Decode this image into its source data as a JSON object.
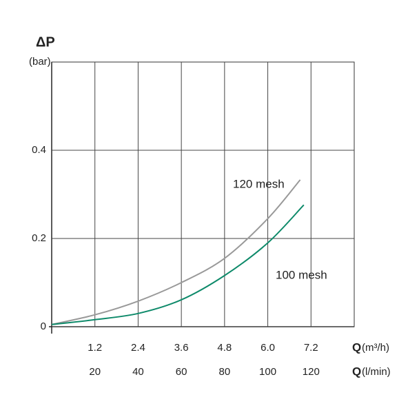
{
  "chart_data": {
    "type": "line",
    "y_label": "ΔP",
    "y_unit": "(bar)",
    "x_label": "Q",
    "x_unit": "(m³/h)",
    "x2_label": "Q",
    "x2_unit": "(l/min)",
    "xlim": [
      0,
      8.4
    ],
    "xticks": [
      1.2,
      2.4,
      3.6,
      4.8,
      {
        "value": 6,
        "label": "6.0"
      },
      7.2
    ],
    "x2lim": [
      0,
      140
    ],
    "x2ticks": [
      20,
      40,
      60,
      80,
      100,
      120
    ],
    "ylim": [
      0,
      0.6
    ],
    "yticks": [
      0,
      0.2,
      0.4
    ],
    "grid": true,
    "series": [
      {
        "name": "120 mesh",
        "color": "#999999",
        "x": [
          0,
          1.2,
          2.4,
          3.6,
          4.8,
          6.0,
          6.9
        ],
        "values": [
          0.005,
          0.027,
          0.058,
          0.1,
          0.155,
          0.245,
          0.333
        ]
      },
      {
        "name": "100 mesh",
        "color": "#0e8a6a",
        "x": [
          0,
          1.2,
          2.4,
          3.6,
          4.8,
          6.0,
          7.0
        ],
        "values": [
          0.005,
          0.016,
          0.03,
          0.061,
          0.116,
          0.19,
          0.276
        ]
      }
    ]
  }
}
